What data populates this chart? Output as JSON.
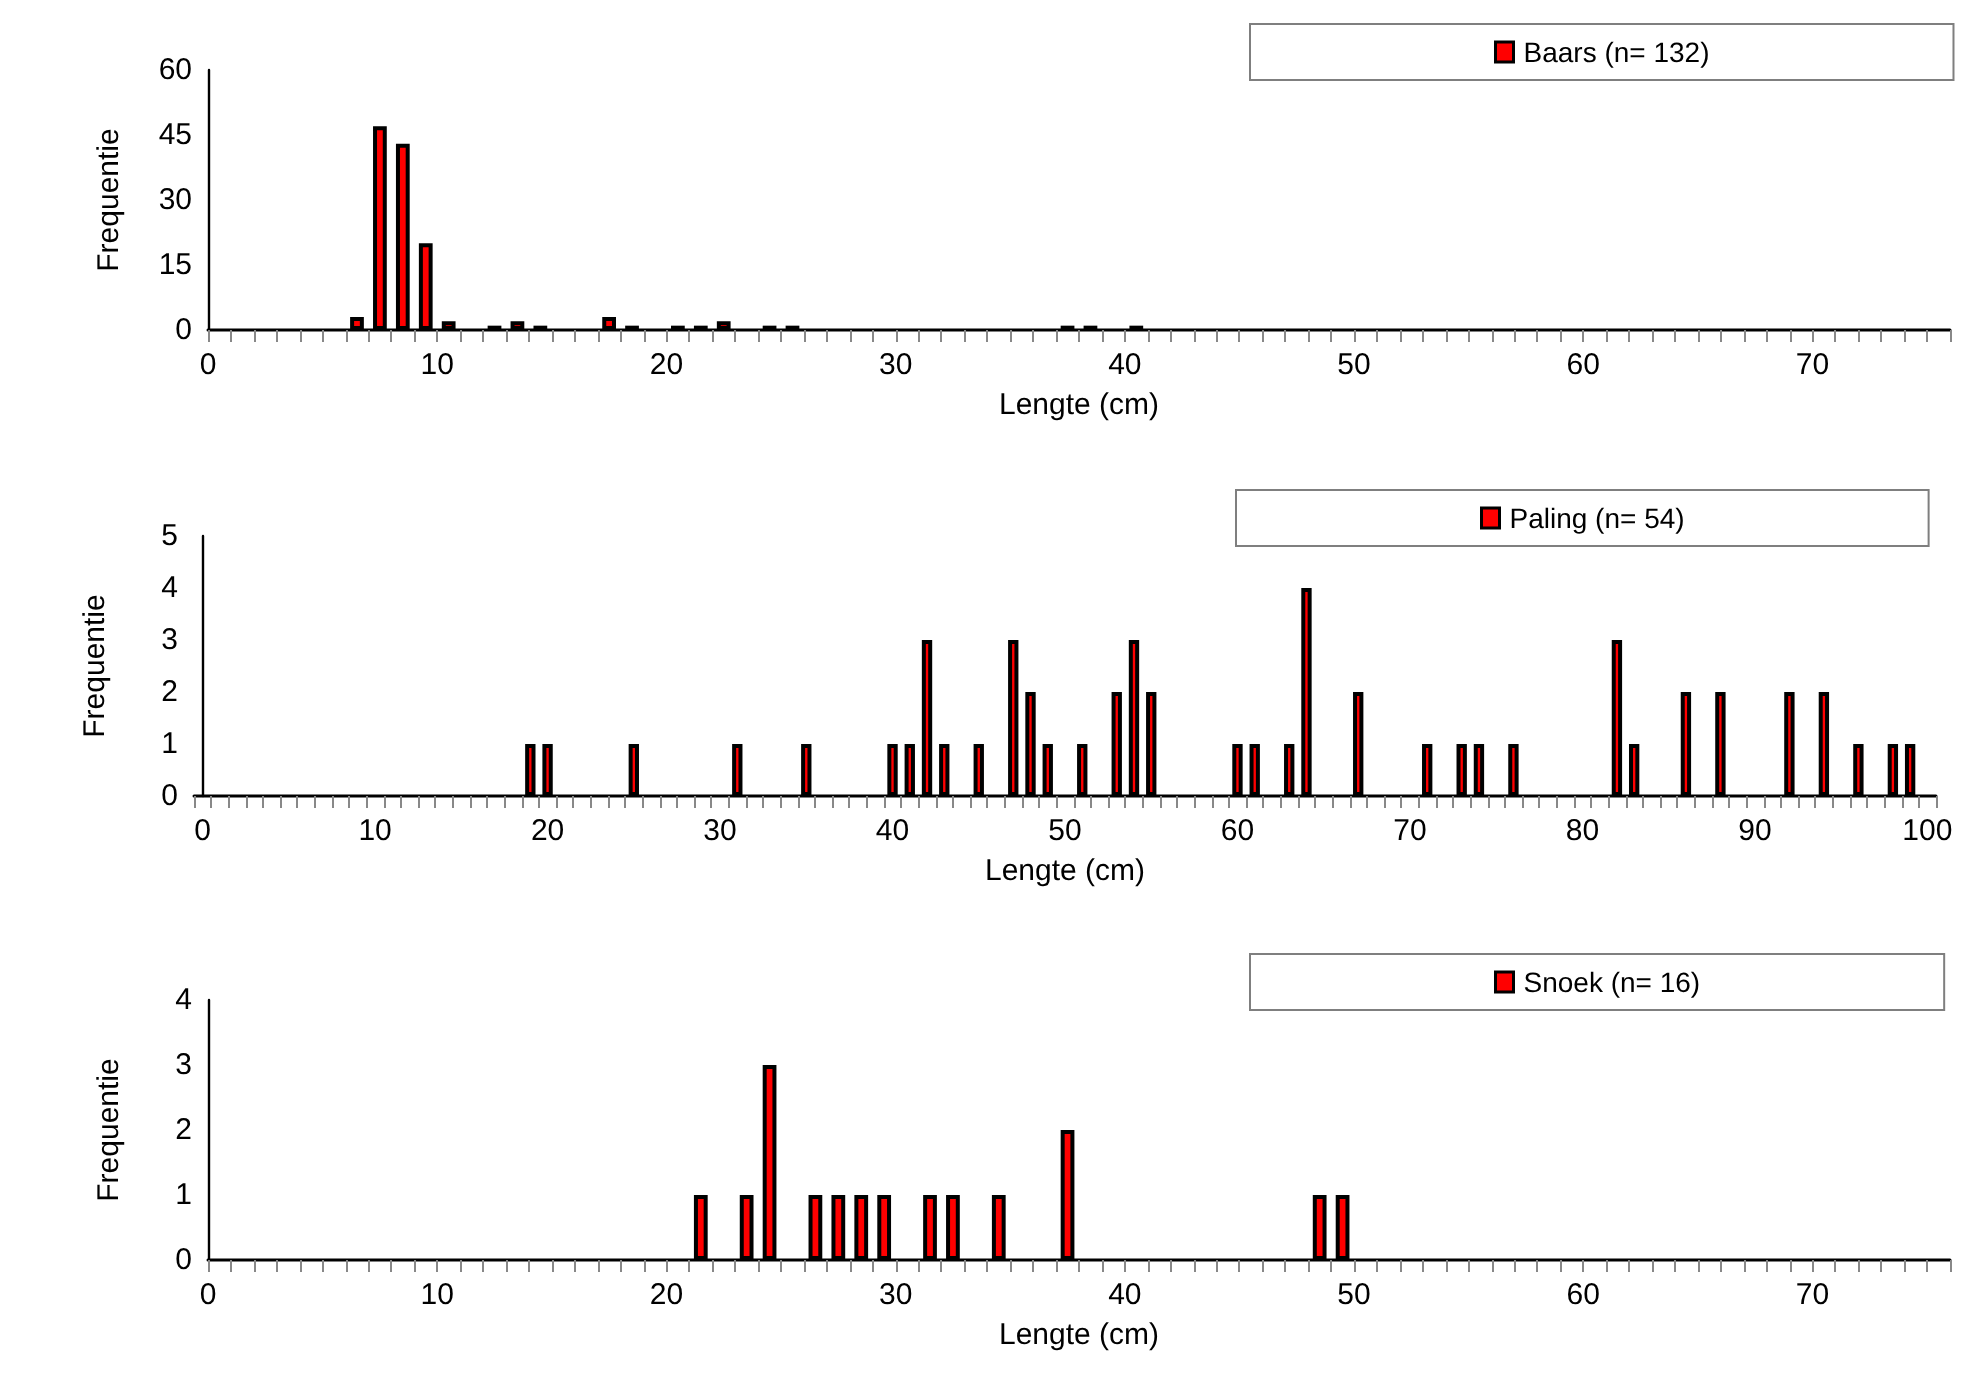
{
  "chart_data": [
    {
      "type": "bar",
      "xlabel": "Lengte (cm)",
      "ylabel": "Frequentie",
      "xlim": [
        0,
        76
      ],
      "xticks": [
        0,
        10,
        20,
        30,
        40,
        50,
        60,
        70
      ],
      "ylim": [
        0,
        60
      ],
      "yticks": [
        0,
        15,
        30,
        45,
        60
      ],
      "legend": "top right",
      "grid": false,
      "series": [
        {
          "name": "Baars (n= 132)",
          "color": "#ff0000",
          "x": [
            6.5,
            7.5,
            8.5,
            9.5,
            10.5,
            12.5,
            13.5,
            14.5,
            17.5,
            18.5,
            20.5,
            21.5,
            22.5,
            24.5,
            25.5,
            37.5,
            38.5,
            40.5
          ],
          "values": [
            3,
            47,
            43,
            20,
            2,
            1,
            2,
            1,
            3,
            1,
            1,
            1,
            2,
            1,
            1,
            1,
            1,
            1
          ]
        }
      ]
    },
    {
      "type": "bar",
      "xlabel": "Lengte (cm)",
      "ylabel": "Frequentie",
      "xlim": [
        -0.5,
        100.5
      ],
      "xticks": [
        0,
        10,
        20,
        30,
        40,
        50,
        60,
        70,
        80,
        90,
        100
      ],
      "ylim": [
        0,
        5
      ],
      "yticks": [
        0,
        1,
        2,
        3,
        4,
        5
      ],
      "legend": "top right",
      "grid": false,
      "series": [
        {
          "name": "Paling (n= 54)",
          "color": "#ff0000",
          "x": [
            19,
            20,
            25,
            31,
            35,
            40,
            41,
            42,
            43,
            45,
            47,
            48,
            49,
            51,
            53,
            54,
            55,
            60,
            61,
            63,
            64,
            67,
            71,
            73,
            74,
            76,
            82,
            83,
            86,
            88,
            92,
            94,
            96,
            98,
            99
          ],
          "values": [
            1,
            1,
            1,
            1,
            1,
            1,
            1,
            3,
            1,
            1,
            3,
            2,
            1,
            1,
            2,
            3,
            2,
            1,
            1,
            1,
            4,
            2,
            1,
            1,
            1,
            1,
            3,
            1,
            2,
            2,
            2,
            2,
            1,
            1,
            1
          ]
        }
      ]
    },
    {
      "type": "bar",
      "xlabel": "Lengte (cm)",
      "ylabel": "Frequentie",
      "xlim": [
        0,
        76
      ],
      "xticks": [
        0,
        10,
        20,
        30,
        40,
        50,
        60,
        70
      ],
      "ylim": [
        0,
        4
      ],
      "yticks": [
        0,
        1,
        2,
        3,
        4
      ],
      "legend": "top right",
      "grid": false,
      "series": [
        {
          "name": "Snoek (n= 16)",
          "color": "#ff0000",
          "x": [
            21.5,
            23.5,
            24.5,
            26.5,
            27.5,
            28.5,
            29.5,
            31.5,
            32.5,
            34.5,
            37.5,
            48.5,
            49.5
          ],
          "values": [
            1,
            1,
            3,
            1,
            1,
            1,
            1,
            1,
            1,
            1,
            2,
            1,
            1
          ]
        }
      ]
    }
  ]
}
